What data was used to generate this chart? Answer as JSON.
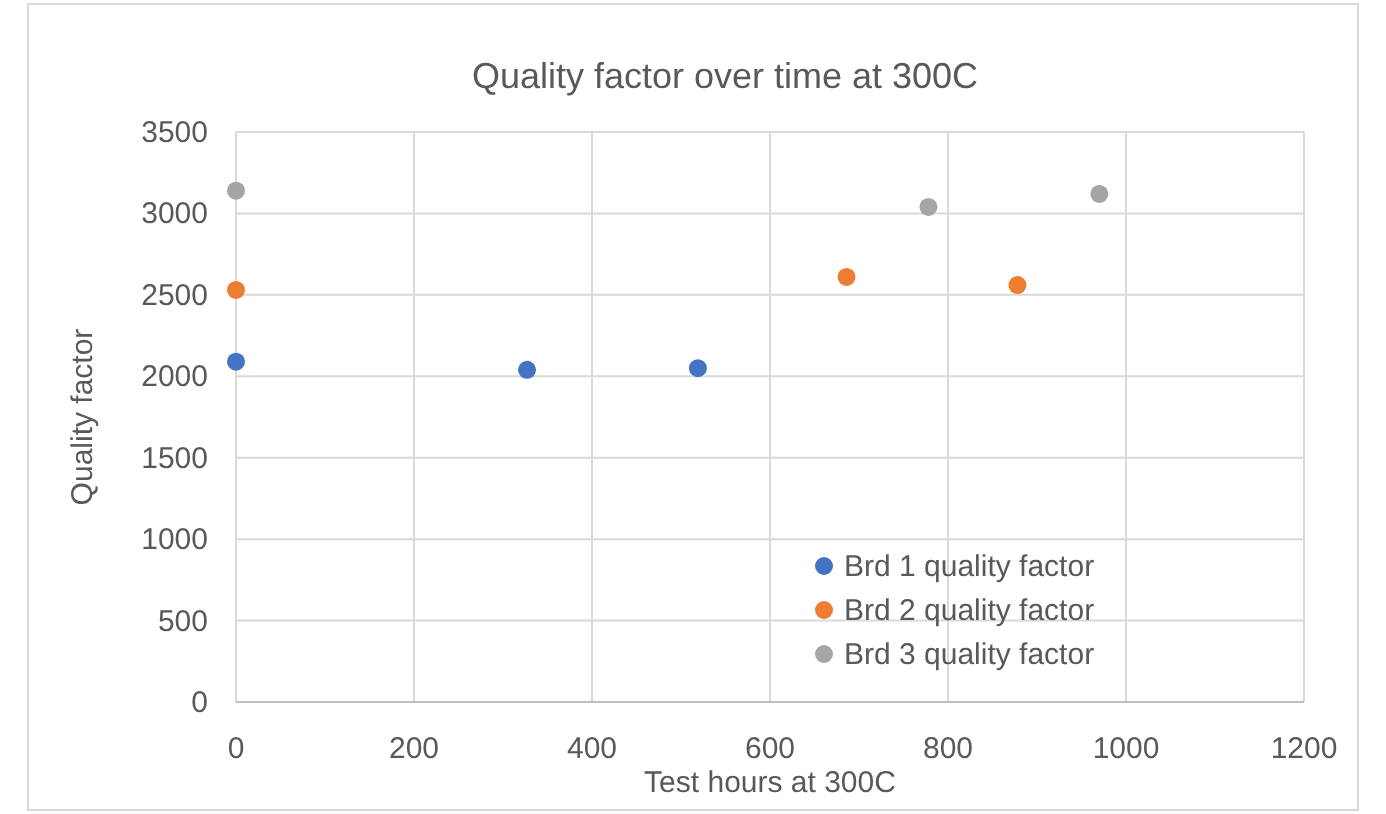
{
  "chart_data": {
    "type": "scatter",
    "title": "Quality factor over time at 300C",
    "xlabel": "Test hours at 300C",
    "ylabel": "Quality factor",
    "xlim": [
      0,
      1200
    ],
    "xticks": [
      0,
      200,
      400,
      600,
      800,
      1000,
      1200
    ],
    "ylim": [
      0,
      3500
    ],
    "yticks": [
      0,
      500,
      1000,
      1500,
      2000,
      2500,
      3000,
      3500
    ],
    "grid": true,
    "legend": "bottom right",
    "marker": "circle",
    "series": [
      {
        "name": "Brd 1 quality factor",
        "color": "#4472c4",
        "x": [
          0,
          327,
          519
        ],
        "values": [
          2090,
          2040,
          2050
        ]
      },
      {
        "name": "Brd 2 quality factor",
        "color": "#ed7d31",
        "x": [
          0,
          686,
          878
        ],
        "values": [
          2530,
          2610,
          2560
        ]
      },
      {
        "name": "Brd 3 quality factor",
        "color": "#a5a5a5",
        "x": [
          0,
          778,
          970
        ],
        "values": [
          3140,
          3040,
          3120
        ]
      }
    ]
  }
}
